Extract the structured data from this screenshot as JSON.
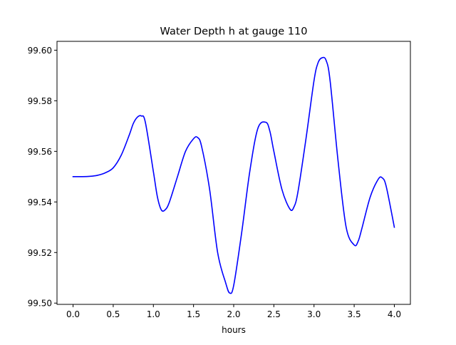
{
  "chart_data": {
    "type": "line",
    "title": "Water Depth h at gauge 110",
    "xlabel": "hours",
    "ylabel": "",
    "xlim": [
      -0.2,
      4.2
    ],
    "ylim": [
      99.4995,
      99.6035
    ],
    "xticks": [
      0.0,
      0.5,
      1.0,
      1.5,
      2.0,
      2.5,
      3.0,
      3.5,
      4.0
    ],
    "xtick_labels": [
      "0.0",
      "0.5",
      "1.0",
      "1.5",
      "2.0",
      "2.5",
      "3.0",
      "3.5",
      "4.0"
    ],
    "yticks": [
      99.5,
      99.52,
      99.54,
      99.56,
      99.58,
      99.6
    ],
    "ytick_labels": [
      "99.50",
      "99.52",
      "99.54",
      "99.56",
      "99.58",
      "99.60"
    ],
    "grid": false,
    "legend": "none",
    "series": [
      {
        "color": "#0000ff",
        "x": [
          0.0,
          0.1,
          0.2,
          0.3,
          0.4,
          0.5,
          0.6,
          0.7,
          0.75,
          0.8,
          0.85,
          0.9,
          1.0,
          1.05,
          1.1,
          1.15,
          1.2,
          1.3,
          1.4,
          1.5,
          1.55,
          1.6,
          1.7,
          1.8,
          1.9,
          1.95,
          2.0,
          2.1,
          2.2,
          2.3,
          2.4,
          2.45,
          2.5,
          2.6,
          2.7,
          2.75,
          2.8,
          2.9,
          3.0,
          3.05,
          3.1,
          3.15,
          3.2,
          3.3,
          3.4,
          3.5,
          3.55,
          3.6,
          3.7,
          3.8,
          3.85,
          3.9,
          4.0
        ],
        "y": [
          99.55,
          99.55,
          99.5501,
          99.5505,
          99.5515,
          99.5535,
          99.5585,
          99.5665,
          99.571,
          99.5735,
          99.574,
          99.5715,
          99.552,
          99.542,
          99.5368,
          99.537,
          99.54,
          99.55,
          99.56,
          99.565,
          99.5655,
          99.562,
          99.545,
          99.52,
          99.508,
          99.504,
          99.507,
          99.528,
          99.552,
          99.569,
          99.5715,
          99.568,
          99.56,
          99.545,
          99.5372,
          99.538,
          99.544,
          99.565,
          99.588,
          99.595,
          99.597,
          99.596,
          99.588,
          99.556,
          99.53,
          99.523,
          99.5245,
          99.53,
          99.542,
          99.549,
          99.5495,
          99.546,
          99.53
        ]
      }
    ]
  }
}
